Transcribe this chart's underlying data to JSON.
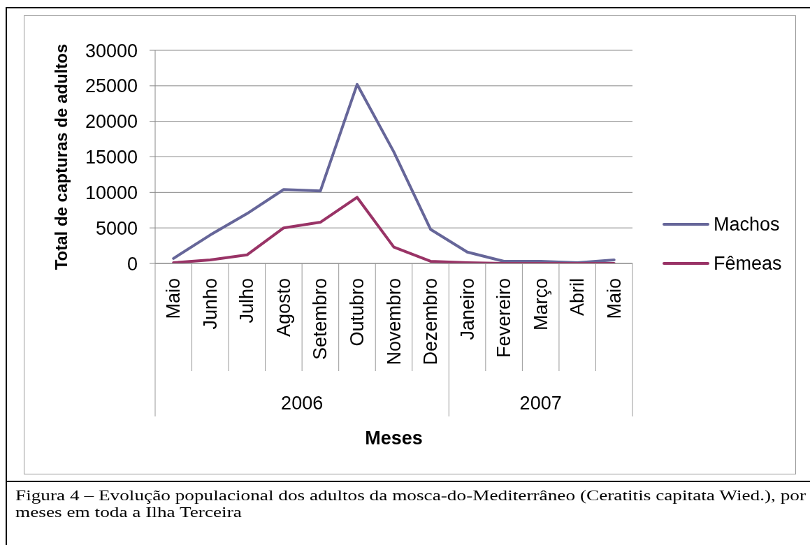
{
  "chart_data": {
    "type": "line",
    "ylabel": "Total de capturas de adultos",
    "xlabel": "Meses",
    "categories": [
      "Maio",
      "Junho",
      "Julho",
      "Agosto",
      "Setembro",
      "Outubro",
      "Novembro",
      "Dezembro",
      "Janeiro",
      "Fevereiro",
      "Março",
      "Abril",
      "Maio"
    ],
    "series": [
      {
        "name": "Machos",
        "color": "#666699",
        "values": [
          700,
          4000,
          7000,
          10400,
          10200,
          25200,
          15700,
          4800,
          1600,
          300,
          300,
          100,
          500
        ]
      },
      {
        "name": "Fêmeas",
        "color": "#993366",
        "values": [
          100,
          500,
          1200,
          5000,
          5800,
          9300,
          2300,
          300,
          100,
          0,
          0,
          0,
          0
        ]
      }
    ],
    "ylim": [
      0,
      30000
    ],
    "yticks": [
      0,
      5000,
      10000,
      15000,
      20000,
      25000,
      30000
    ],
    "grid": "y",
    "legend": "right",
    "marker": "none",
    "annotations": [
      "2006",
      "2007",
      "Figura 4 – Evolução populacional dos adultos da mosca-do-Mediterrâneo (Ceratitis capitata Wied.), por meses em toda a Ilha Terceira"
    ]
  }
}
